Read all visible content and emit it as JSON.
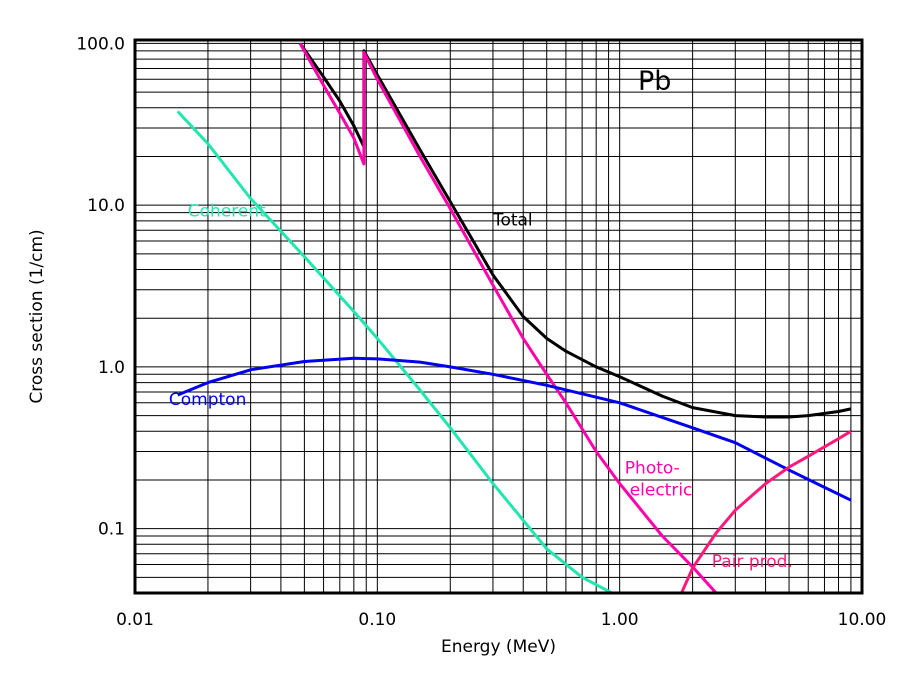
{
  "chart_data": {
    "type": "line",
    "xlabel": "Energy (MeV)",
    "ylabel": "Cross section (1/cm)",
    "element_label": "Pb",
    "xscale": "log",
    "yscale": "log",
    "xlim": [
      0.01,
      10.0
    ],
    "ylim": [
      0.04,
      105
    ],
    "grid": true,
    "xticks": [
      {
        "value": 0.01,
        "label": "0.01"
      },
      {
        "value": 0.1,
        "label": "0.10"
      },
      {
        "value": 1.0,
        "label": "1.00"
      },
      {
        "value": 10.0,
        "label": "10.00"
      }
    ],
    "yticks": [
      {
        "value": 0.1,
        "label": "0.1"
      },
      {
        "value": 1.0,
        "label": "1.0"
      },
      {
        "value": 10.0,
        "label": "10.0"
      },
      {
        "value": 100.0,
        "label": "100.0"
      }
    ],
    "series": [
      {
        "name": "Total",
        "color": "#000000",
        "points": [
          [
            0.048,
            100
          ],
          [
            0.06,
            62
          ],
          [
            0.07,
            44
          ],
          [
            0.08,
            31
          ],
          [
            0.088,
            23
          ],
          [
            0.088,
            90
          ],
          [
            0.1,
            64
          ],
          [
            0.15,
            22
          ],
          [
            0.2,
            10.5
          ],
          [
            0.3,
            3.7
          ],
          [
            0.4,
            2.05
          ],
          [
            0.5,
            1.5
          ],
          [
            0.6,
            1.25
          ],
          [
            0.8,
            1.0
          ],
          [
            1.0,
            0.87
          ],
          [
            1.5,
            0.66
          ],
          [
            2.0,
            0.56
          ],
          [
            3.0,
            0.5
          ],
          [
            4.0,
            0.49
          ],
          [
            5.0,
            0.49
          ],
          [
            6.0,
            0.5
          ],
          [
            8.0,
            0.53
          ],
          [
            9.0,
            0.55
          ]
        ]
      },
      {
        "name": "Photo-electric",
        "color": "#ff00aa",
        "points": [
          [
            0.048,
            100
          ],
          [
            0.06,
            55
          ],
          [
            0.07,
            37
          ],
          [
            0.08,
            26
          ],
          [
            0.088,
            18
          ],
          [
            0.088,
            88
          ],
          [
            0.1,
            60
          ],
          [
            0.15,
            20
          ],
          [
            0.2,
            9.5
          ],
          [
            0.3,
            3.2
          ],
          [
            0.4,
            1.5
          ],
          [
            0.5,
            0.9
          ],
          [
            0.6,
            0.6
          ],
          [
            0.8,
            0.3
          ],
          [
            1.0,
            0.19
          ],
          [
            1.5,
            0.09
          ],
          [
            2.0,
            0.058
          ],
          [
            2.5,
            0.04
          ]
        ]
      },
      {
        "name": "Coherent",
        "color": "#22e6b0",
        "points": [
          [
            0.015,
            38
          ],
          [
            0.02,
            24
          ],
          [
            0.03,
            11
          ],
          [
            0.05,
            4.8
          ],
          [
            0.08,
            2.2
          ],
          [
            0.1,
            1.5
          ],
          [
            0.15,
            0.72
          ],
          [
            0.2,
            0.42
          ],
          [
            0.3,
            0.19
          ],
          [
            0.5,
            0.075
          ],
          [
            0.7,
            0.05
          ],
          [
            0.93,
            0.04
          ]
        ]
      },
      {
        "name": "Compton",
        "color": "#0000ee",
        "points": [
          [
            0.015,
            0.67
          ],
          [
            0.02,
            0.8
          ],
          [
            0.03,
            0.96
          ],
          [
            0.05,
            1.08
          ],
          [
            0.08,
            1.13
          ],
          [
            0.1,
            1.12
          ],
          [
            0.15,
            1.07
          ],
          [
            0.2,
            1.0
          ],
          [
            0.3,
            0.9
          ],
          [
            0.5,
            0.77
          ],
          [
            1.0,
            0.6
          ],
          [
            2.0,
            0.42
          ],
          [
            3.0,
            0.34
          ],
          [
            5.0,
            0.23
          ],
          [
            7.0,
            0.18
          ],
          [
            9.0,
            0.15
          ]
        ]
      },
      {
        "name": "Pair prod.",
        "color": "#ff1a7a",
        "points": [
          [
            1.8,
            0.04
          ],
          [
            2.0,
            0.057
          ],
          [
            2.5,
            0.094
          ],
          [
            3.0,
            0.13
          ],
          [
            4.0,
            0.19
          ],
          [
            5.0,
            0.24
          ],
          [
            6.0,
            0.28
          ],
          [
            8.0,
            0.36
          ],
          [
            9.0,
            0.4
          ]
        ]
      }
    ],
    "annotations": [
      {
        "series": "Total",
        "text": "Total",
        "x": 0.3,
        "y": 7.5,
        "color": "#000000"
      },
      {
        "series": "Photo-electric",
        "text": "Photo-",
        "x": 1.05,
        "y": 0.22,
        "color": "#ff00aa"
      },
      {
        "series": "Photo-electric",
        "text": "electric",
        "x": 1.1,
        "y": 0.16,
        "color": "#ff00aa"
      },
      {
        "series": "Coherent",
        "text": "Coherent",
        "x": 0.0165,
        "y": 8.5,
        "color": "#22e6b0"
      },
      {
        "series": "Compton",
        "text": "Compton",
        "x": 0.0138,
        "y": 0.58,
        "color": "#0000ee"
      },
      {
        "series": "Pair prod.",
        "text": "Pair prod.",
        "x": 2.4,
        "y": 0.058,
        "color": "#ff1a7a"
      }
    ]
  }
}
